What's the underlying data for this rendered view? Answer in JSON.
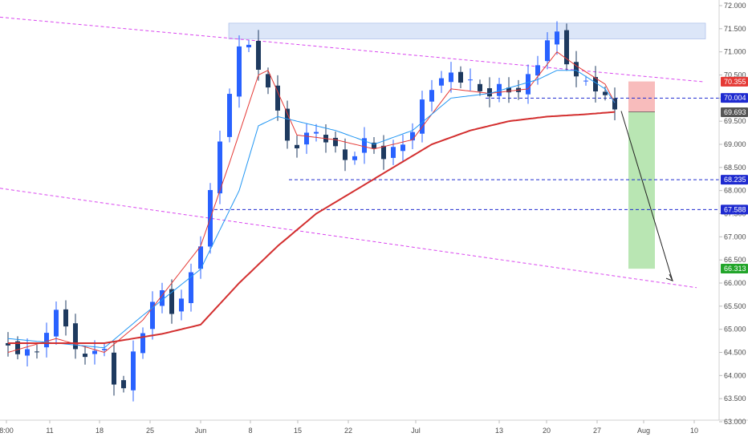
{
  "chart_data": {
    "type": "candlestick",
    "ylim": [
      63.0,
      72.0
    ],
    "y_ticks": [
      "72.000",
      "71.500",
      "71.000",
      "70.500",
      "70.000",
      "69.500",
      "69.000",
      "68.500",
      "68.000",
      "67.500",
      "67.000",
      "66.500",
      "66.000",
      "65.500",
      "65.000",
      "64.500",
      "64.000",
      "63.500",
      "63.000"
    ],
    "x_ticks": [
      "8:00",
      "11",
      "18",
      "25",
      "Jun",
      "8",
      "15",
      "22",
      "Jul",
      "13",
      "20",
      "27",
      "Aug",
      "10"
    ],
    "colors": {
      "up": "#2962ff",
      "down": "#1e3a5f",
      "ma_fast": "#e53935",
      "ma_mid": "#2196f3",
      "ma_slow": "#d32f2f",
      "channel": "#d946ef",
      "level": "#1e2ad0",
      "stop_zone": "#f8bcbc",
      "target_zone": "#b9e6b3",
      "resistance_zone": "#dce6f8"
    },
    "price_tags": [
      {
        "label": "70.355",
        "value": 70.355,
        "color": "#e53935"
      },
      {
        "label": "70.004",
        "value": 70.004,
        "color": "#1e2ad0"
      },
      {
        "label": "69.693",
        "value": 69.693,
        "color": "#555555"
      },
      {
        "label": "68.235",
        "value": 68.235,
        "color": "#1e2ad0"
      },
      {
        "label": "67.588",
        "value": 67.588,
        "color": "#1e2ad0"
      },
      {
        "label": "66.313",
        "value": 66.313,
        "color": "#22a52a"
      }
    ],
    "series": [
      {
        "name": "",
        "kind": "price",
        "anchors": [
          [
            0,
            64.7
          ],
          [
            3,
            64.4
          ],
          [
            6,
            65.5
          ],
          [
            8,
            64.2
          ],
          [
            10,
            64.8
          ],
          [
            12,
            63.5
          ],
          [
            14,
            64.7
          ],
          [
            16,
            65.9
          ],
          [
            18,
            65.3
          ],
          [
            20,
            66.5
          ],
          [
            21,
            67.3
          ],
          [
            22,
            68.5
          ],
          [
            23,
            69.7
          ],
          [
            24,
            70.6
          ],
          [
            25,
            71.4
          ],
          [
            26,
            71.1
          ],
          [
            27,
            70.1
          ],
          [
            28,
            70.2
          ],
          [
            29,
            69.5
          ],
          [
            30,
            68.5
          ],
          [
            31,
            69.3
          ],
          [
            32,
            69.4
          ],
          [
            33,
            68.9
          ],
          [
            34,
            69.3
          ],
          [
            35,
            68.7
          ],
          [
            36,
            68.4
          ],
          [
            37,
            69.3
          ],
          [
            38,
            68.9
          ],
          [
            39,
            68.8
          ],
          [
            40,
            68.8
          ],
          [
            41,
            68.9
          ],
          [
            42,
            69.1
          ],
          [
            43,
            69.6
          ],
          [
            44,
            70.1
          ],
          [
            45,
            70.4
          ],
          [
            46,
            70.5
          ],
          [
            47,
            70.4
          ],
          [
            48,
            70.5
          ],
          [
            49,
            70.2
          ],
          [
            50,
            70.0
          ],
          [
            51,
            70.3
          ],
          [
            52,
            70.1
          ],
          [
            53,
            70.2
          ],
          [
            54,
            70.2
          ],
          [
            55,
            70.6
          ],
          [
            56,
            71.0
          ],
          [
            57,
            71.5
          ],
          [
            58,
            71.2
          ],
          [
            59,
            70.5
          ],
          [
            60,
            70.3
          ],
          [
            61,
            70.4
          ],
          [
            62,
            70.1
          ],
          [
            63,
            69.8
          ]
        ]
      },
      {
        "name": "",
        "kind": "ma_fast",
        "anchors": [
          [
            0,
            64.5
          ],
          [
            5,
            64.8
          ],
          [
            10,
            64.5
          ],
          [
            14,
            65.2
          ],
          [
            20,
            66.8
          ],
          [
            23,
            68.6
          ],
          [
            26,
            70.5
          ],
          [
            27,
            70.6
          ],
          [
            30,
            69.2
          ],
          [
            34,
            69.1
          ],
          [
            38,
            68.9
          ],
          [
            42,
            69.1
          ],
          [
            46,
            70.2
          ],
          [
            50,
            70.1
          ],
          [
            54,
            70.2
          ],
          [
            57,
            71.0
          ],
          [
            59,
            70.7
          ],
          [
            62,
            70.3
          ],
          [
            63,
            69.9
          ]
        ]
      },
      {
        "name": "",
        "kind": "ma_mid",
        "anchors": [
          [
            0,
            64.8
          ],
          [
            10,
            64.6
          ],
          [
            14,
            65.3
          ],
          [
            20,
            66.3
          ],
          [
            24,
            68.0
          ],
          [
            26,
            69.4
          ],
          [
            28,
            69.6
          ],
          [
            34,
            69.3
          ],
          [
            38,
            69.0
          ],
          [
            42,
            69.3
          ],
          [
            46,
            70.0
          ],
          [
            50,
            70.1
          ],
          [
            55,
            70.4
          ],
          [
            57,
            70.6
          ],
          [
            59,
            70.6
          ],
          [
            62,
            70.2
          ],
          [
            63,
            69.9
          ]
        ]
      },
      {
        "name": "",
        "kind": "ma_slow",
        "anchors": [
          [
            0,
            64.7
          ],
          [
            10,
            64.7
          ],
          [
            16,
            64.9
          ],
          [
            20,
            65.1
          ],
          [
            24,
            66.0
          ],
          [
            28,
            66.8
          ],
          [
            32,
            67.5
          ],
          [
            36,
            68.0
          ],
          [
            40,
            68.5
          ],
          [
            44,
            69.0
          ],
          [
            48,
            69.3
          ],
          [
            52,
            69.5
          ],
          [
            56,
            69.6
          ],
          [
            60,
            69.65
          ],
          [
            63,
            69.7
          ]
        ]
      }
    ],
    "candle_count": 64
  }
}
